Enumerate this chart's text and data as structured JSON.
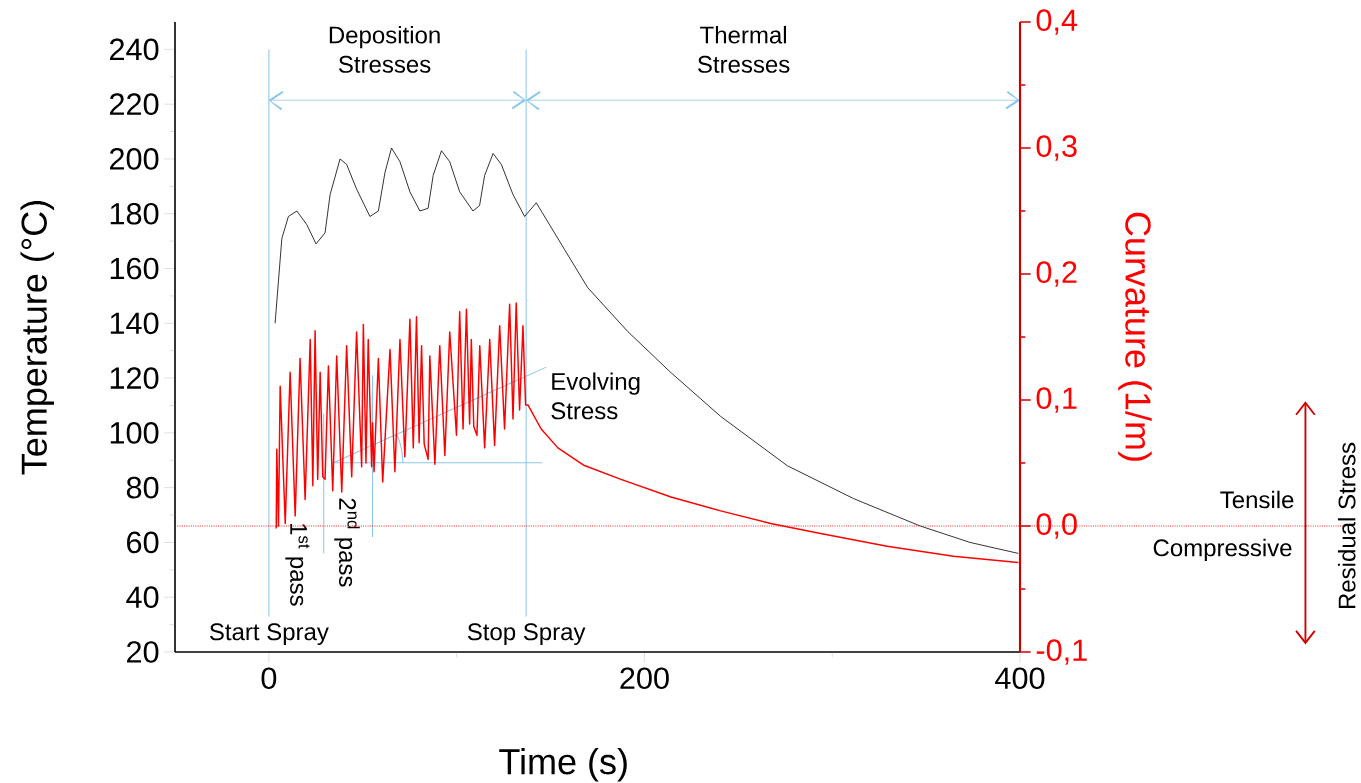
{
  "chart_data": {
    "type": "line",
    "xlabel": "Time (s)",
    "ylabel": "Temperature (°C)",
    "y2label": "Curvature (1/m)",
    "xlim": [
      -50,
      400
    ],
    "xticks": [
      0,
      {
        "value": 100,
        "label": null
      },
      200,
      {
        "value": 300,
        "label": null
      },
      400
    ],
    "ylim": [
      20,
      250
    ],
    "yticks": [
      20,
      {
        "value": 30,
        "label": null
      },
      40,
      {
        "value": 50,
        "label": null
      },
      60,
      {
        "value": 70,
        "label": null
      },
      80,
      {
        "value": 90,
        "label": null
      },
      100,
      {
        "value": 110,
        "label": null
      },
      120,
      {
        "value": 130,
        "label": null
      },
      140,
      {
        "value": 150,
        "label": null
      },
      160,
      {
        "value": 170,
        "label": null
      },
      180,
      {
        "value": 190,
        "label": null
      },
      200,
      {
        "value": 210,
        "label": null
      },
      220,
      {
        "value": 230,
        "label": null
      },
      240
    ],
    "y2lim": [
      -0.1,
      0.4
    ],
    "y2ticks": [
      {
        "value": -0.1,
        "label": "-0,1"
      },
      {
        "value": -0.05,
        "label": null
      },
      {
        "value": 0.0,
        "label": "0,0"
      },
      {
        "value": 0.05,
        "label": null
      },
      {
        "value": 0.1,
        "label": "0,1"
      },
      {
        "value": 0.15,
        "label": null
      },
      {
        "value": 0.2,
        "label": "0,2"
      },
      {
        "value": 0.25,
        "label": null
      },
      {
        "value": 0.3,
        "label": "0,3"
      },
      {
        "value": 0.35,
        "label": null
      },
      {
        "value": 0.4,
        "label": "0,4"
      }
    ],
    "series": [
      {
        "color": "#000000",
        "x": [
          3.3,
          6.9,
          10.4,
          14.9,
          20.2,
          25.1,
          29.9,
          32.6,
          37.9,
          41.4,
          46.7,
          53.8,
          58.3,
          61.8,
          65.3,
          69.8,
          75.1,
          80.4,
          84.8,
          87.5,
          91.9,
          96.3,
          101.6,
          108.7,
          112.2,
          114.9,
          119.4,
          123.8,
          130.0,
          136.2,
          142.4,
          157.4,
          169.8,
          191.1,
          214.1,
          240.6,
          276.1,
          311.4,
          346.9,
          373.4,
          399.1
        ],
        "values": [
          140,
          171,
          179,
          181,
          176,
          169,
          173,
          187,
          200,
          198,
          189,
          179,
          181,
          195,
          204,
          199,
          188,
          181,
          182,
          194,
          203,
          199,
          188,
          181,
          183,
          194,
          202,
          198,
          187,
          179,
          184,
          167,
          153,
          137,
          122,
          106,
          88,
          76,
          66,
          60,
          56
        ]
      },
      {
        "color": "#ff0000",
        "axis": "y2",
        "x": [
          3.9,
          4.2,
          5.1,
          6.0,
          8.7,
          11.3,
          14.0,
          16.6,
          19.3,
          22.0,
          23.4,
          24.6,
          26.0,
          27.3,
          28.7,
          29.9,
          31.7,
          34.0,
          36.1,
          38.8,
          41.4,
          44.1,
          46.7,
          49.4,
          50.3,
          51.7,
          52.9,
          54.7,
          55.2,
          56.0,
          58.3,
          60.6,
          64.5,
          67.1,
          69.8,
          72.4,
          75.1,
          76.9,
          78.6,
          80.0,
          81.3,
          82.7,
          84.8,
          85.7,
          88.4,
          91.0,
          93.7,
          96.3,
          99.9,
          101.6,
          103.4,
          105.2,
          106.9,
          107.8,
          109.1,
          110.8,
          112.3,
          114.9,
          117.6,
          120.2,
          122.9,
          125.5,
          128.2,
          130.0,
          131.7,
          133.5,
          135.3,
          136.7,
          138.0,
          145.0,
          153.9,
          168.0,
          187.5,
          214.1,
          240.6,
          267.2,
          293.8,
          329.2,
          364.6,
          399.1
        ],
        "values": [
          -0.002,
          0.061,
          0.0,
          0.111,
          0.002,
          0.122,
          0.008,
          0.133,
          0.021,
          0.148,
          0.032,
          0.155,
          0.037,
          0.122,
          0.039,
          0.037,
          0.127,
          0.028,
          0.135,
          0.027,
          0.143,
          0.039,
          0.154,
          0.047,
          0.16,
          0.05,
          0.148,
          0.047,
          0.082,
          0.043,
          0.133,
          0.035,
          0.14,
          0.043,
          0.148,
          0.055,
          0.164,
          0.062,
          0.166,
          0.066,
          0.143,
          0.065,
          0.053,
          0.135,
          0.049,
          0.143,
          0.056,
          0.154,
          0.072,
          0.17,
          0.077,
          0.172,
          0.081,
          0.148,
          0.079,
          0.072,
          0.143,
          0.062,
          0.148,
          0.064,
          0.159,
          0.077,
          0.176,
          0.085,
          0.177,
          0.092,
          0.159,
          0.096,
          0.096,
          0.077,
          0.062,
          0.048,
          0.037,
          0.023,
          0.012,
          0.002,
          -0.006,
          -0.016,
          -0.024,
          -0.029
        ]
      }
    ],
    "ref_lines": [
      {
        "axis": "x",
        "value": 0,
        "label": "Start Spray",
        "color": "#8dc8ec"
      },
      {
        "axis": "x",
        "value": 137,
        "label": "Stop Spray",
        "color": "#8dc8ec"
      },
      {
        "axis": "x",
        "value": 29.2,
        "label": "1$^{st}$ pass",
        "color": "#8dc8ec"
      },
      {
        "axis": "x",
        "value": 55.2,
        "label": "2$^{nd}$ pass",
        "color": "#8dc8ec"
      },
      {
        "axis": "y2",
        "value": 0.0,
        "color": "#ff0000",
        "line_style": "dotted"
      }
    ],
    "annotations": [
      "Deposition Stresses",
      "Thermal Stresses",
      "Evolving Stress",
      "Tensile",
      "Compressive",
      "Residual Stress"
    ]
  }
}
